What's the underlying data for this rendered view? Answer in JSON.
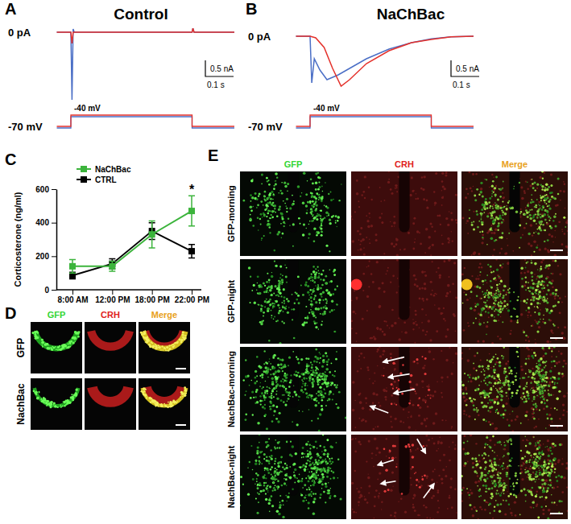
{
  "panel_a": {
    "letter": "A",
    "title": "Control",
    "current_label": "0 pA",
    "hold_label": "-70 mV",
    "step_label": "-40 mV",
    "hold": -70,
    "step": -40,
    "step_on": 0,
    "step_off": 0.43,
    "scale_current": 0.5,
    "scale_current_label": "0.5 nA",
    "scale_time": 0.1,
    "scale_time_label": "0.1 s",
    "traces": [
      {
        "color": "#4b6fc6",
        "t": [
          -0.05,
          0,
          0.004,
          0.008,
          0.012,
          0.43,
          0.433,
          0.437,
          0.58
        ],
        "i": [
          0,
          0,
          -2.1,
          0.1,
          0,
          0,
          0.12,
          0,
          0
        ]
      },
      {
        "color": "#e4312b",
        "t": [
          -0.05,
          0,
          0.004,
          0.008,
          0.43,
          0.433,
          0.437,
          0.58
        ],
        "i": [
          0,
          0,
          -0.35,
          0,
          0,
          0.12,
          0,
          0
        ]
      }
    ]
  },
  "panel_b": {
    "letter": "B",
    "title": "NaChBac",
    "current_label": "0 pA",
    "hold_label": "-70 mV",
    "step_label": "-40 mV",
    "hold": -70,
    "step": -40,
    "step_on": 0,
    "step_off": 0.43,
    "scale_current": 0.5,
    "scale_current_label": "0.5 nA",
    "scale_time": 0.1,
    "scale_time_label": "0.1 s",
    "traces": [
      {
        "color": "#4b6fc6",
        "t": [
          -0.05,
          0,
          0.006,
          0.015,
          0.035,
          0.06,
          0.1,
          0.15,
          0.2,
          0.28,
          0.36,
          0.43,
          0.5,
          0.58
        ],
        "i": [
          0,
          0,
          -1.45,
          -0.7,
          -1.05,
          -1.35,
          -1.2,
          -0.95,
          -0.7,
          -0.4,
          -0.2,
          -0.08,
          -0.02,
          0
        ]
      },
      {
        "color": "#e4312b",
        "t": [
          -0.05,
          0,
          0.02,
          0.05,
          0.08,
          0.11,
          0.14,
          0.2,
          0.28,
          0.36,
          0.43,
          0.5,
          0.58
        ],
        "i": [
          0,
          0,
          -0.05,
          -0.35,
          -1.0,
          -1.55,
          -1.35,
          -0.85,
          -0.45,
          -0.2,
          -0.1,
          -0.02,
          0
        ]
      }
    ]
  },
  "panel_c": {
    "letter": "C"
  },
  "chart_data": {
    "type": "line",
    "y_label": "Corticosterone (ng/ml)",
    "categories": [
      "8:00 AM",
      "12:00 PM",
      "18:00 PM",
      "22:00 PM"
    ],
    "ylim": [
      0,
      600
    ],
    "yticks": [
      0,
      200,
      400,
      600
    ],
    "legend": "upper left",
    "series": [
      {
        "name": "NaChBac",
        "color": "#3cb43c",
        "marker": "square",
        "values": [
          140,
          140,
          330,
          470
        ],
        "errors": [
          40,
          30,
          80,
          90
        ]
      },
      {
        "name": "CTRL",
        "color": "#000000",
        "marker": "square",
        "values": [
          85,
          155,
          350,
          230
        ],
        "errors": [
          20,
          30,
          50,
          40
        ]
      }
    ],
    "annotations": [
      {
        "text": "*",
        "category": "22:00 PM"
      }
    ]
  },
  "panel_d": {
    "letter": "D",
    "columns": [
      "GFP",
      "CRH",
      "Merge"
    ],
    "rows": [
      "GFP",
      "NachBac"
    ]
  },
  "panel_e": {
    "letter": "E",
    "columns": [
      "GFP",
      "CRH",
      "Merge"
    ],
    "rows": [
      "GFP-morning",
      "GFP-night",
      "NachBac-morning",
      "NachBac-night"
    ]
  }
}
